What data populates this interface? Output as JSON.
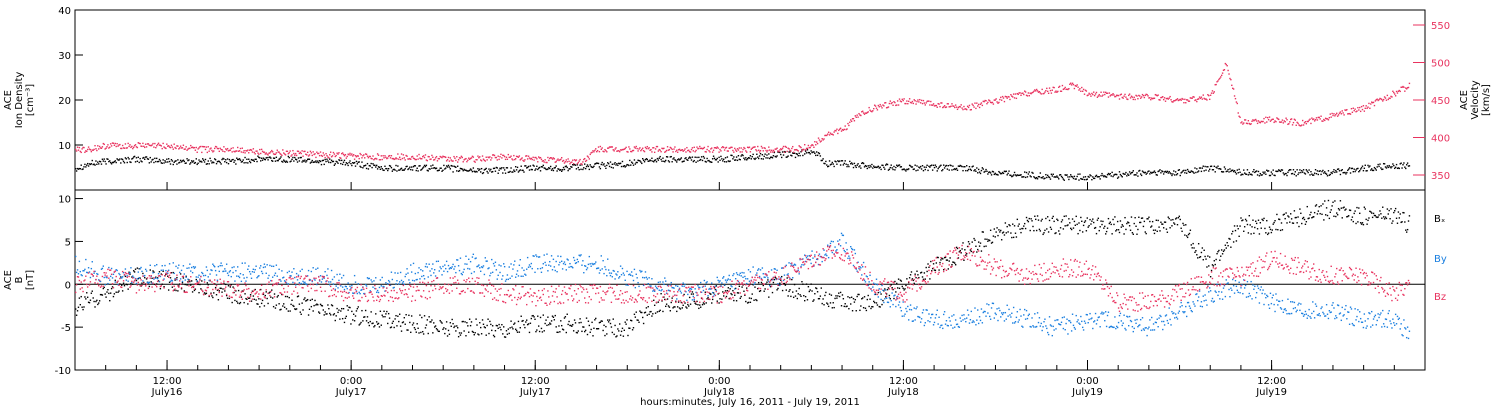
{
  "chart_data": [
    {
      "type": "scatter",
      "panel": "top",
      "ylabel": "ACE\nIon Density\n[cm⁻³]",
      "ylabel_right": "ACE\nVelocity\n[km/s]",
      "ylim": [
        0,
        40
      ],
      "yticks": [
        10,
        20,
        30,
        40
      ],
      "ylim_right": [
        330,
        570
      ],
      "yticks_right": [
        350,
        400,
        450,
        500,
        550
      ],
      "xlim": [
        0,
        88
      ],
      "series": [
        {
          "axis": "left",
          "color": "#000000",
          "x": [
            0,
            1,
            2,
            4,
            6,
            8,
            10,
            12,
            14,
            16,
            18,
            20,
            22,
            24,
            26,
            28,
            30,
            32,
            34,
            36,
            38,
            40,
            42,
            44,
            46,
            47,
            48,
            49,
            50,
            52,
            54,
            56,
            58,
            60,
            62,
            64,
            66,
            68,
            70,
            72,
            74,
            76,
            78,
            80,
            82,
            84,
            86,
            87
          ],
          "y": [
            5,
            6,
            6.5,
            7,
            6.5,
            6.5,
            6.5,
            7,
            7,
            6.5,
            6,
            5,
            5,
            5,
            4.5,
            4.5,
            5,
            5,
            5.5,
            6,
            7,
            7,
            7,
            7.5,
            8,
            8,
            9,
            6,
            6,
            5.5,
            5,
            5,
            5,
            4,
            3.5,
            3,
            3,
            3.5,
            4,
            4,
            5,
            4,
            4,
            4,
            4,
            5,
            5.5,
            5.5
          ]
        },
        {
          "axis": "right",
          "color": "#e8335f",
          "x": [
            0,
            1,
            2,
            4,
            6,
            8,
            10,
            12,
            14,
            16,
            18,
            20,
            22,
            24,
            26,
            28,
            30,
            32,
            33,
            34,
            36,
            38,
            40,
            42,
            44,
            46,
            47,
            48,
            49,
            50,
            51,
            52,
            53,
            54,
            56,
            58,
            60,
            62,
            64,
            65,
            66,
            68,
            70,
            72,
            74,
            75,
            76,
            78,
            80,
            82,
            84,
            86,
            87
          ],
          "y": [
            385,
            385,
            390,
            390,
            390,
            385,
            385,
            382,
            380,
            378,
            376,
            375,
            375,
            372,
            372,
            375,
            372,
            370,
            368,
            385,
            385,
            385,
            385,
            385,
            385,
            385,
            385,
            390,
            405,
            410,
            430,
            440,
            445,
            450,
            445,
            440,
            450,
            460,
            465,
            470,
            460,
            455,
            455,
            450,
            455,
            500,
            420,
            425,
            420,
            430,
            440,
            460,
            470
          ]
        }
      ]
    },
    {
      "type": "scatter",
      "panel": "bottom",
      "ylabel": "ACE\nB\n[nT]",
      "ylim": [
        -10,
        11
      ],
      "yticks": [
        -10,
        -5,
        0,
        5,
        10
      ],
      "zero_line": true,
      "xlim": [
        0,
        88
      ],
      "series": [
        {
          "name": "Bx",
          "color": "#000000",
          "x": [
            0,
            2,
            4,
            6,
            8,
            10,
            12,
            14,
            16,
            18,
            20,
            22,
            24,
            26,
            28,
            30,
            32,
            34,
            36,
            38,
            40,
            42,
            44,
            46,
            48,
            50,
            52,
            54,
            56,
            58,
            60,
            62,
            64,
            66,
            68,
            70,
            72,
            74,
            76,
            78,
            80,
            82,
            84,
            86,
            87
          ],
          "y": [
            -2.5,
            -1,
            1,
            0.5,
            0,
            -1,
            -1.5,
            -2,
            -3,
            -3.5,
            -4,
            -4.5,
            -5,
            -5,
            -5,
            -4.5,
            -4.5,
            -5,
            -5,
            -2,
            -2,
            -1,
            -1,
            0,
            -1,
            -2,
            -2,
            0,
            2,
            4,
            6,
            7,
            7,
            7,
            7,
            7,
            7,
            2,
            7,
            7,
            8,
            9,
            8,
            8,
            7
          ]
        },
        {
          "name": "By",
          "color": "#1a7fe0",
          "x": [
            0,
            2,
            4,
            6,
            8,
            10,
            12,
            14,
            16,
            18,
            20,
            22,
            24,
            26,
            28,
            30,
            32,
            34,
            36,
            38,
            40,
            42,
            44,
            46,
            48,
            50,
            52,
            54,
            56,
            58,
            60,
            62,
            64,
            66,
            68,
            70,
            72,
            74,
            76,
            78,
            80,
            82,
            84,
            86,
            87
          ],
          "y": [
            2.5,
            1,
            1,
            1.5,
            1.5,
            1.5,
            1.5,
            1,
            1,
            0,
            0,
            1.5,
            2,
            2.5,
            1.5,
            2.5,
            2.5,
            2.5,
            1,
            0,
            -1,
            0,
            1,
            1,
            3,
            5,
            0,
            -3,
            -4,
            -4,
            -3,
            -4,
            -5,
            -4,
            -4,
            -5,
            -3,
            -1,
            0,
            -2,
            -3,
            -3,
            -4,
            -4,
            -6
          ]
        },
        {
          "name": "Bz",
          "color": "#e8335f",
          "x": [
            0,
            2,
            4,
            6,
            8,
            10,
            12,
            14,
            16,
            18,
            20,
            22,
            24,
            26,
            28,
            30,
            32,
            34,
            36,
            38,
            40,
            42,
            44,
            46,
            48,
            50,
            52,
            54,
            56,
            58,
            60,
            62,
            64,
            66,
            68,
            70,
            72,
            74,
            76,
            78,
            80,
            82,
            84,
            86,
            87
          ],
          "y": [
            0,
            1,
            0,
            0.5,
            0,
            -0.5,
            -1,
            0,
            0,
            -1,
            -1,
            -1,
            0,
            0,
            -1,
            -1.5,
            -1,
            -1,
            -1,
            -1,
            -1,
            -1,
            0,
            1,
            3,
            4,
            0,
            -1,
            2,
            4,
            2,
            1,
            2,
            2,
            -2,
            -2,
            -1,
            1,
            1,
            3,
            2,
            1,
            1,
            -1,
            0
          ]
        }
      ],
      "legend": [
        "Bₓ",
        "By",
        "Bz"
      ]
    }
  ],
  "x_axis": {
    "title": "hours:minutes, July 16, 2011 - July 19, 2011",
    "ticks": [
      {
        "x": 6,
        "time": "12:00",
        "date": "July16"
      },
      {
        "x": 18,
        "time": "0:00",
        "date": "July17"
      },
      {
        "x": 30,
        "time": "12:00",
        "date": "July17"
      },
      {
        "x": 42,
        "time": "0:00",
        "date": "July18"
      },
      {
        "x": 54,
        "time": "12:00",
        "date": "July18"
      },
      {
        "x": 66,
        "time": "0:00",
        "date": "July19"
      },
      {
        "x": 78,
        "time": "12:00",
        "date": "July19"
      }
    ]
  },
  "colors": {
    "black": "#000000",
    "red": "#e8335f",
    "blue": "#1a7fe0"
  }
}
